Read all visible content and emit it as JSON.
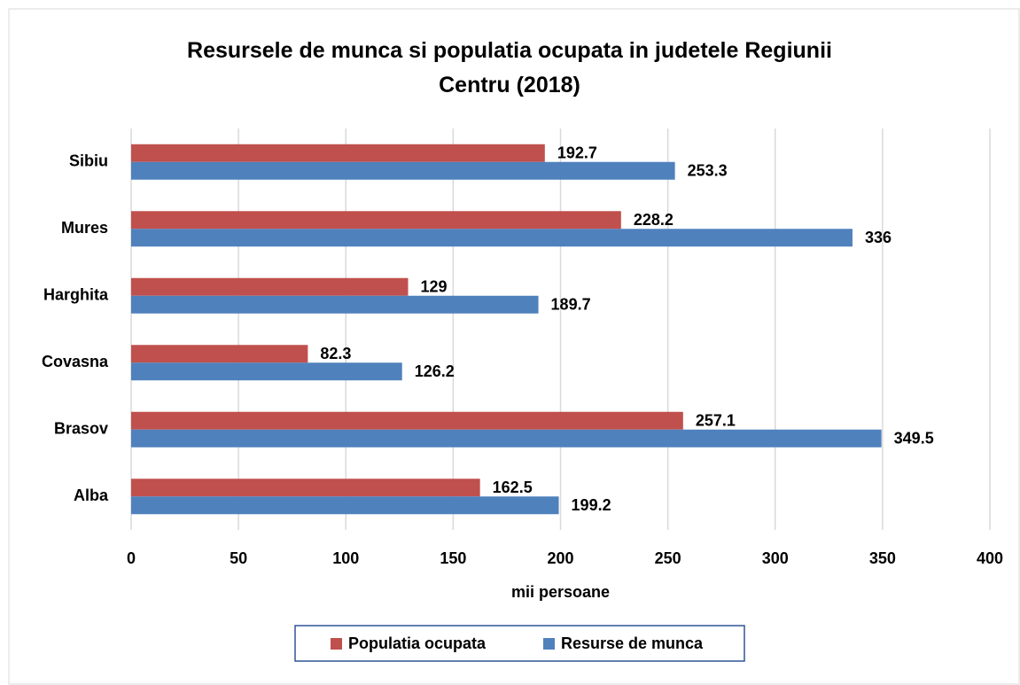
{
  "chart_data": {
    "type": "hbar",
    "title": "Resursele de munca si populatia ocupata in judetele Regiunii Centru (2018)",
    "categories": [
      "Alba",
      "Brasov",
      "Covasna",
      "Harghita",
      "Mures",
      "Sibiu"
    ],
    "series": [
      {
        "name": "Populatia ocupata",
        "color": "#c0504d",
        "values": [
          162.5,
          257.1,
          82.3,
          129,
          228.2,
          192.7
        ]
      },
      {
        "name": "Resurse de munca",
        "color": "#4f81bd",
        "values": [
          199.2,
          349.5,
          126.2,
          189.7,
          336,
          253.3
        ]
      }
    ],
    "xlabel": "mii persoane",
    "xlim": [
      0,
      400
    ],
    "xticks": [
      0,
      50,
      100,
      150,
      200,
      250,
      300,
      350,
      400
    ],
    "grid": true,
    "legend": "bottom"
  }
}
